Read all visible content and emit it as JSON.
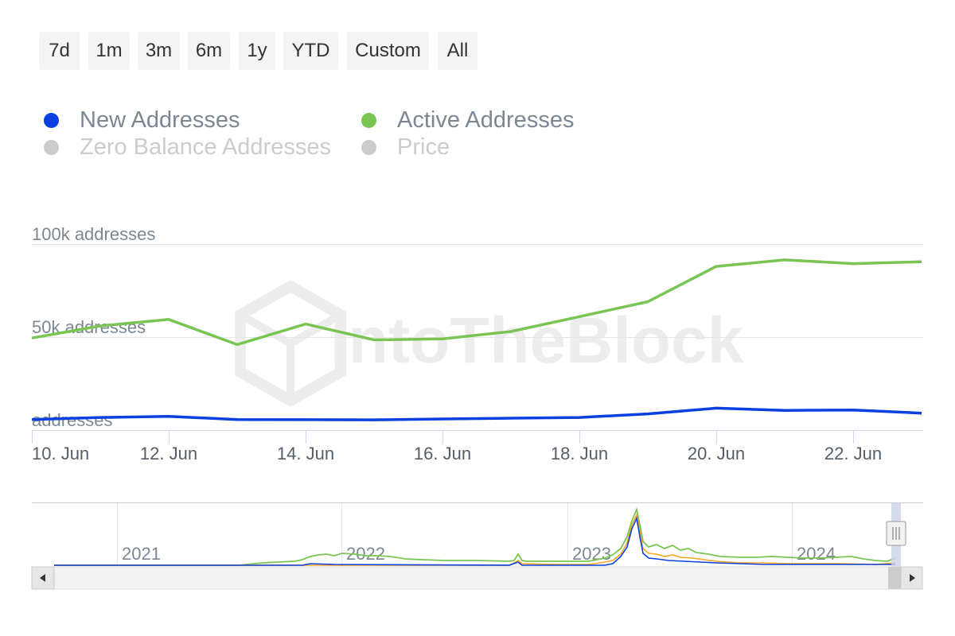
{
  "range_selector": {
    "buttons": [
      "7d",
      "1m",
      "3m",
      "6m",
      "1y",
      "YTD",
      "Custom",
      "All"
    ]
  },
  "legend": [
    {
      "name": "New Addresses",
      "color": "#0b3fe0",
      "visible": true
    },
    {
      "name": "Active Addresses",
      "color": "#79c553",
      "visible": true
    },
    {
      "name": "Zero Balance Addresses",
      "color": "#cccccc",
      "visible": false
    },
    {
      "name": "Price",
      "color": "#cccccc",
      "visible": false
    }
  ],
  "watermark": "IntoTheBlock",
  "chart_data": {
    "type": "line",
    "x": [
      "10. Jun",
      "11. Jun",
      "12. Jun",
      "13. Jun",
      "14. Jun",
      "15. Jun",
      "16. Jun",
      "17. Jun",
      "18. Jun",
      "19. Jun",
      "20. Jun",
      "21. Jun",
      "22. Jun",
      "23. Jun"
    ],
    "x_tick_labels": [
      "10. Jun",
      "12. Jun",
      "14. Jun",
      "16. Jun",
      "18. Jun",
      "20. Jun",
      "22. Jun"
    ],
    "y_tick_labels": [
      "100k addresses",
      "50k addresses",
      "addresses"
    ],
    "ylim": [
      0,
      100000
    ],
    "grid": true,
    "series": [
      {
        "name": "New Addresses",
        "color": "#0b3fe0",
        "values": [
          5700,
          6800,
          7400,
          5700,
          5600,
          5500,
          6000,
          6400,
          6800,
          8700,
          11800,
          10600,
          10800,
          9100
        ]
      },
      {
        "name": "Active Addresses",
        "color": "#79c553",
        "values": [
          49500,
          56000,
          59500,
          46000,
          57000,
          48500,
          49000,
          53000,
          61000,
          69000,
          88000,
          91500,
          89500,
          90500
        ]
      }
    ],
    "navigator": {
      "year_labels": [
        "2021",
        "2022",
        "2023",
        "2024"
      ]
    }
  }
}
